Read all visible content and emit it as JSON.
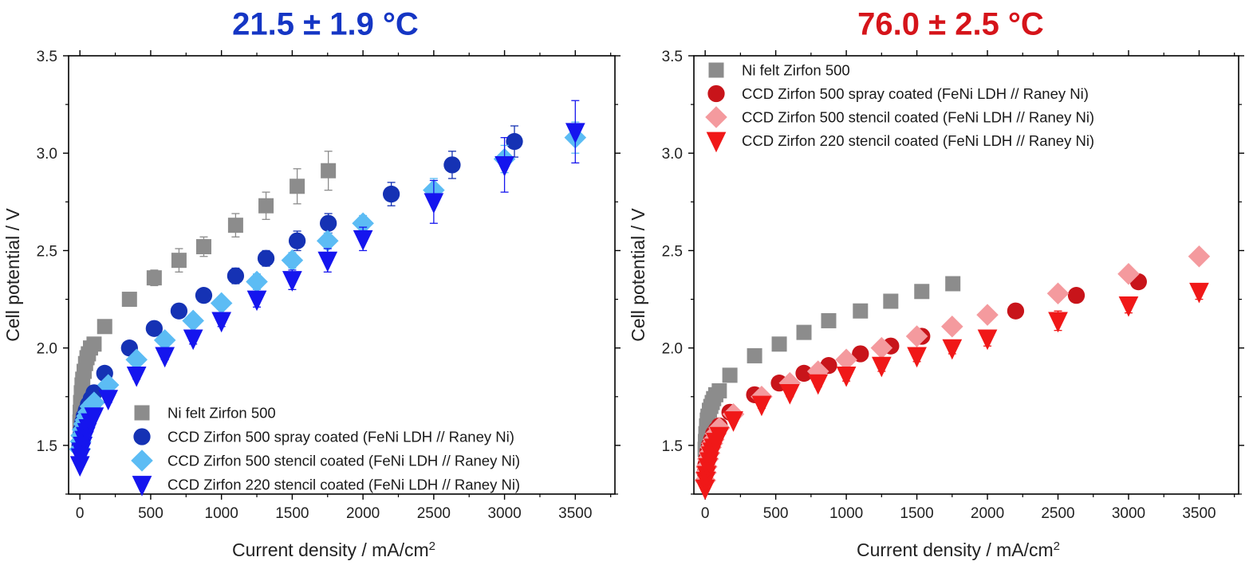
{
  "chart_data": [
    {
      "type": "scatter",
      "title": "21.5 ± 1.9 °C",
      "title_color": "#1536c4",
      "xlabel": "Current density / mA/cm",
      "xlabel_sup": "2",
      "ylabel": "Cell potential / V",
      "xlim": [
        -80,
        3780
      ],
      "ylim": [
        1.25,
        3.5
      ],
      "xticks": [
        0,
        500,
        1000,
        1500,
        2000,
        2500,
        3000,
        3500
      ],
      "yticks": [
        1.5,
        2.0,
        2.5,
        3.0,
        3.5
      ],
      "ytick_labels": [
        "1.5",
        "2.0",
        "2.5",
        "3.0",
        "3.5"
      ],
      "legend_position": "bottom-right",
      "series": [
        {
          "name": "Ni felt Zirfon 500",
          "marker": "square",
          "color": "#8c8c8c",
          "x": [
            0,
            2,
            5,
            10,
            15,
            20,
            30,
            40,
            50,
            60,
            75,
            100,
            175,
            350,
            525,
            700,
            875,
            1100,
            1315,
            1535,
            1755
          ],
          "y": [
            1.62,
            1.67,
            1.72,
            1.77,
            1.81,
            1.84,
            1.88,
            1.92,
            1.95,
            1.97,
            2.0,
            2.02,
            2.11,
            2.25,
            2.36,
            2.45,
            2.52,
            2.63,
            2.73,
            2.83,
            2.91
          ],
          "err": [
            0,
            0,
            0,
            0,
            0,
            0,
            0,
            0,
            0,
            0,
            0,
            0,
            0.02,
            0.03,
            0.04,
            0.06,
            0.05,
            0.06,
            0.07,
            0.09,
            0.1
          ]
        },
        {
          "name": "CCD Zirfon 500 spray coated (FeNi LDH // Raney Ni)",
          "marker": "circle",
          "color": "#1532b4",
          "x": [
            0,
            5,
            10,
            20,
            30,
            45,
            60,
            80,
            100,
            175,
            350,
            525,
            700,
            875,
            1100,
            1315,
            1535,
            1755,
            2200,
            2630,
            3070
          ],
          "y": [
            1.5,
            1.55,
            1.58,
            1.62,
            1.65,
            1.68,
            1.71,
            1.74,
            1.77,
            1.87,
            2.0,
            2.1,
            2.19,
            2.27,
            2.37,
            2.46,
            2.55,
            2.64,
            2.79,
            2.94,
            3.06
          ],
          "err": [
            0,
            0,
            0,
            0,
            0,
            0,
            0,
            0,
            0,
            0.02,
            0.03,
            0.03,
            0.03,
            0.03,
            0.04,
            0.04,
            0.05,
            0.05,
            0.06,
            0.07,
            0.08
          ]
        },
        {
          "name": "CCD Zirfon 500 stencil coated (FeNi LDH // Raney Ni)",
          "marker": "diamond",
          "color": "#5cbcf4",
          "x": [
            0,
            5,
            10,
            20,
            30,
            40,
            50,
            60,
            75,
            100,
            200,
            400,
            600,
            800,
            1000,
            1250,
            1500,
            1750,
            2000,
            2500,
            3000,
            3500
          ],
          "y": [
            1.48,
            1.52,
            1.55,
            1.58,
            1.61,
            1.63,
            1.65,
            1.67,
            1.7,
            1.72,
            1.81,
            1.94,
            2.04,
            2.14,
            2.23,
            2.34,
            2.45,
            2.55,
            2.64,
            2.81,
            2.97,
            3.08
          ],
          "err": [
            0,
            0,
            0,
            0,
            0,
            0,
            0,
            0,
            0,
            0,
            0.01,
            0.02,
            0.02,
            0.03,
            0.03,
            0.04,
            0.04,
            0.04,
            0.04,
            0.06,
            0.07,
            0.08
          ]
        },
        {
          "name": "CCD Zirfon 220 stencil coated (FeNi LDH // Raney Ni)",
          "marker": "triangle-down",
          "color": "#1515ee",
          "x": [
            0,
            5,
            10,
            20,
            30,
            40,
            50,
            60,
            75,
            100,
            200,
            400,
            600,
            800,
            1000,
            1250,
            1500,
            1750,
            2000,
            2500,
            3000,
            3500
          ],
          "y": [
            1.4,
            1.44,
            1.47,
            1.5,
            1.53,
            1.55,
            1.57,
            1.59,
            1.62,
            1.65,
            1.74,
            1.86,
            1.96,
            2.05,
            2.14,
            2.25,
            2.35,
            2.45,
            2.56,
            2.75,
            2.94,
            3.11
          ],
          "err": [
            0,
            0,
            0,
            0,
            0,
            0,
            0,
            0,
            0,
            0,
            0.02,
            0.02,
            0.02,
            0.03,
            0.03,
            0.04,
            0.05,
            0.06,
            0.06,
            0.11,
            0.14,
            0.16
          ]
        }
      ]
    },
    {
      "type": "scatter",
      "title": "76.0 ± 2.5 °C",
      "title_color": "#d5141a",
      "xlabel": "Current density / mA/cm",
      "xlabel_sup": "2",
      "ylabel": "Cell potential / V",
      "xlim": [
        -80,
        3780
      ],
      "ylim": [
        1.25,
        3.5
      ],
      "xticks": [
        0,
        500,
        1000,
        1500,
        2000,
        2500,
        3000,
        3500
      ],
      "yticks": [
        1.5,
        2.0,
        2.5,
        3.0,
        3.5
      ],
      "ytick_labels": [
        "1.5",
        "2.0",
        "2.5",
        "3.0",
        "3.5"
      ],
      "legend_position": "top-left",
      "series": [
        {
          "name": "Ni felt Zirfon 500",
          "marker": "square",
          "color": "#8c8c8c",
          "x": [
            0,
            2,
            5,
            10,
            15,
            20,
            30,
            40,
            50,
            60,
            75,
            100,
            175,
            350,
            525,
            700,
            875,
            1100,
            1315,
            1535,
            1755
          ],
          "y": [
            1.48,
            1.52,
            1.56,
            1.6,
            1.63,
            1.65,
            1.68,
            1.7,
            1.72,
            1.74,
            1.76,
            1.78,
            1.86,
            1.96,
            2.02,
            2.08,
            2.14,
            2.19,
            2.24,
            2.29,
            2.33
          ],
          "err": [
            0,
            0,
            0,
            0,
            0,
            0,
            0,
            0,
            0,
            0,
            0,
            0,
            0,
            0,
            0,
            0,
            0,
            0,
            0,
            0,
            0
          ]
        },
        {
          "name": "CCD Zirfon 500 spray coated (FeNi LDH // Raney Ni)",
          "marker": "circle",
          "color": "#c8141a",
          "x": [
            0,
            5,
            10,
            20,
            30,
            45,
            60,
            80,
            100,
            175,
            350,
            525,
            700,
            875,
            1100,
            1315,
            1535,
            2200,
            2630,
            3070
          ],
          "y": [
            1.36,
            1.4,
            1.43,
            1.47,
            1.5,
            1.53,
            1.56,
            1.58,
            1.6,
            1.67,
            1.76,
            1.82,
            1.87,
            1.91,
            1.97,
            2.01,
            2.06,
            2.19,
            2.27,
            2.34
          ],
          "err": [
            0,
            0,
            0,
            0,
            0,
            0,
            0,
            0,
            0,
            0.02,
            0.02,
            0.02,
            0.02,
            0.02,
            0.02,
            0.02,
            0.02,
            0.02,
            0.02,
            0.03
          ]
        },
        {
          "name": "CCD Zirfon 500 stencil coated (FeNi LDH // Raney Ni)",
          "marker": "diamond",
          "color": "#f49a9e",
          "x": [
            0,
            5,
            10,
            20,
            30,
            40,
            50,
            60,
            75,
            100,
            200,
            400,
            600,
            800,
            1000,
            1250,
            1500,
            1750,
            2000,
            2500,
            3000,
            3500
          ],
          "y": [
            1.32,
            1.36,
            1.39,
            1.43,
            1.46,
            1.49,
            1.51,
            1.53,
            1.56,
            1.59,
            1.66,
            1.75,
            1.82,
            1.88,
            1.94,
            2.0,
            2.06,
            2.11,
            2.17,
            2.28,
            2.38,
            2.47
          ],
          "err": [
            0,
            0,
            0,
            0,
            0,
            0,
            0,
            0,
            0,
            0,
            0.01,
            0.01,
            0.02,
            0.02,
            0.02,
            0.02,
            0.03,
            0.03,
            0.03,
            0.03,
            0.03,
            0.03
          ]
        },
        {
          "name": "CCD Zirfon 220 stencil coated (FeNi LDH // Raney Ni)",
          "marker": "triangle-down",
          "color": "#f01818",
          "x": [
            0,
            5,
            10,
            20,
            30,
            40,
            50,
            60,
            75,
            100,
            200,
            400,
            600,
            800,
            1000,
            1250,
            1500,
            1750,
            2000,
            2500,
            3000,
            3500
          ],
          "y": [
            1.28,
            1.32,
            1.35,
            1.39,
            1.42,
            1.45,
            1.47,
            1.49,
            1.52,
            1.55,
            1.63,
            1.71,
            1.77,
            1.82,
            1.86,
            1.91,
            1.96,
            2.0,
            2.05,
            2.14,
            2.22,
            2.29
          ],
          "err": [
            0,
            0,
            0,
            0,
            0,
            0,
            0,
            0,
            0,
            0,
            0.01,
            0.02,
            0.02,
            0.02,
            0.03,
            0.03,
            0.03,
            0.03,
            0.04,
            0.05,
            0.04,
            0.04
          ]
        }
      ]
    }
  ]
}
